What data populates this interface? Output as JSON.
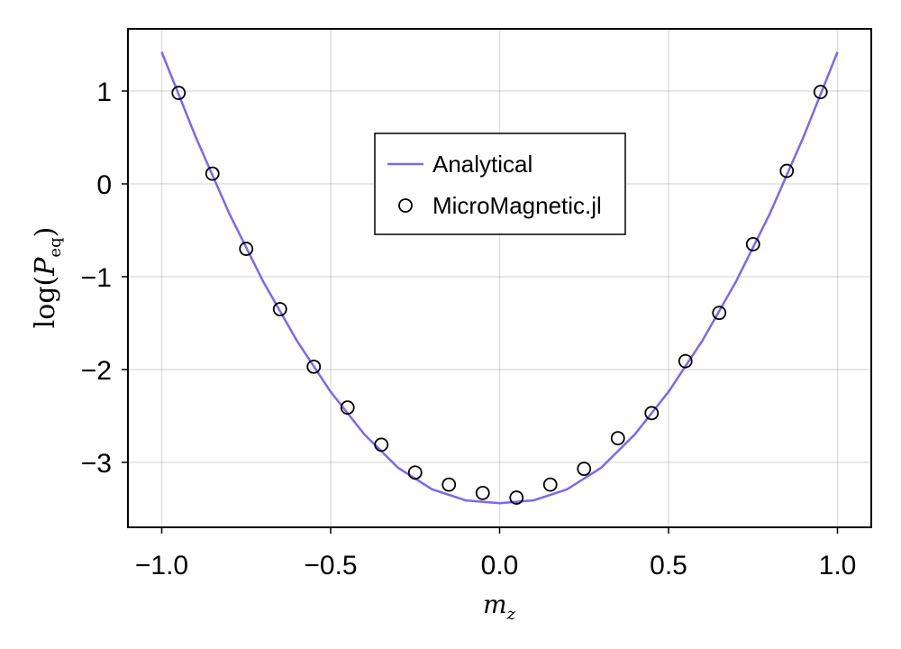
{
  "chart_data": {
    "type": "line",
    "title": "",
    "xlabel": "m",
    "xlabel_sub": "z",
    "ylabel_prefix": "log(",
    "ylabel_main": "P",
    "ylabel_sub": "eq",
    "ylabel_suffix": ")",
    "xlim": [
      -1.1,
      1.1
    ],
    "ylim": [
      -3.7,
      1.67
    ],
    "xticks": [
      -1.0,
      -0.5,
      0.0,
      0.5,
      1.0
    ],
    "xtick_labels": [
      "−1.0",
      "−0.5",
      "0.0",
      "0.5",
      "1.0"
    ],
    "yticks": [
      1,
      0,
      -1,
      -2,
      -3
    ],
    "ytick_labels": [
      "1",
      "0",
      "−1",
      "−2",
      "−3"
    ],
    "grid": true,
    "legend_position": "top-center",
    "series": [
      {
        "name": "Analytical",
        "kind": "line",
        "color": "#7b68ee",
        "x": [
          -1.0,
          -0.9,
          -0.8,
          -0.7,
          -0.6,
          -0.5,
          -0.4,
          -0.3,
          -0.2,
          -0.1,
          0.0,
          0.1,
          0.2,
          0.3,
          0.4,
          0.5,
          0.6,
          0.7,
          0.8,
          0.9,
          1.0
        ],
        "y": [
          1.42,
          0.51,
          -0.32,
          -1.05,
          -1.69,
          -2.24,
          -2.7,
          -3.06,
          -3.29,
          -3.41,
          -3.44,
          -3.41,
          -3.29,
          -3.06,
          -2.7,
          -2.24,
          -1.69,
          -1.05,
          -0.32,
          0.51,
          1.42
        ]
      },
      {
        "name": "MicroMagnetic.jl",
        "kind": "scatter",
        "color": "#000000",
        "x": [
          -0.95,
          -0.85,
          -0.75,
          -0.65,
          -0.55,
          -0.45,
          -0.35,
          -0.25,
          -0.15,
          -0.05,
          0.05,
          0.15,
          0.25,
          0.35,
          0.45,
          0.55,
          0.65,
          0.75,
          0.85,
          0.95
        ],
        "y": [
          0.98,
          0.11,
          -0.7,
          -1.35,
          -1.97,
          -2.41,
          -2.81,
          -3.11,
          -3.24,
          -3.33,
          -3.38,
          -3.24,
          -3.07,
          -2.74,
          -2.47,
          -1.91,
          -1.39,
          -0.65,
          0.14,
          0.99
        ]
      }
    ]
  }
}
